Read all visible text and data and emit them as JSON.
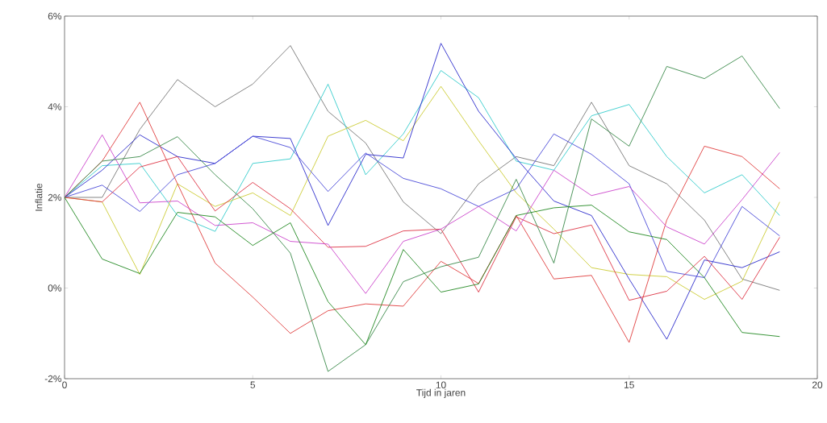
{
  "chart_data": {
    "type": "line",
    "xlabel": "Tijd in jaren",
    "ylabel": "Inflatie",
    "x": [
      0,
      1,
      2,
      3,
      4,
      5,
      6,
      7,
      8,
      9,
      10,
      11,
      12,
      13,
      14,
      15,
      16,
      17,
      18,
      19
    ],
    "xlim": [
      0,
      20
    ],
    "ylim": [
      -2,
      6
    ],
    "xticks": [
      0,
      5,
      10,
      15,
      20
    ],
    "yticks": [
      {
        "value": -2,
        "label": "-2%"
      },
      {
        "value": 0,
        "label": "0%"
      },
      {
        "value": 2,
        "label": "2%"
      },
      {
        "value": 4,
        "label": "4%"
      },
      {
        "value": 6,
        "label": "6%"
      }
    ],
    "series": [
      {
        "color": "#777777",
        "values": [
          2,
          2.0,
          3.5,
          4.6,
          4.0,
          4.5,
          5.35,
          3.9,
          3.2,
          1.9,
          1.2,
          2.3,
          2.9,
          2.7,
          4.1,
          2.7,
          2.3,
          1.5,
          0.2,
          -0.05
        ]
      },
      {
        "color": "#33cccc",
        "values": [
          2,
          2.7,
          2.75,
          1.6,
          1.25,
          2.75,
          2.85,
          4.5,
          2.5,
          3.4,
          4.8,
          4.2,
          2.8,
          2.6,
          3.8,
          4.05,
          2.9,
          2.1,
          2.5,
          1.6
        ]
      },
      {
        "color": "#cccc33",
        "values": [
          2,
          1.9,
          0.3,
          2.3,
          1.8,
          2.1,
          1.6,
          3.35,
          3.7,
          3.25,
          4.45,
          3.25,
          2.1,
          1.3,
          0.45,
          0.3,
          0.25,
          -0.25,
          0.15,
          1.9
        ]
      },
      {
        "color": "#2a2acc",
        "values": [
          2,
          2.6,
          3.38,
          2.9,
          2.75,
          3.35,
          3.3,
          1.38,
          2.95,
          2.87,
          5.4,
          3.9,
          2.86,
          1.92,
          1.6,
          0.2,
          -1.13,
          0.62,
          0.45,
          0.8
        ]
      },
      {
        "color": "#4a4ad8",
        "values": [
          2,
          2.27,
          1.69,
          2.5,
          2.75,
          3.35,
          3.1,
          2.13,
          2.98,
          2.42,
          2.19,
          1.8,
          2.19,
          3.4,
          2.95,
          2.3,
          0.37,
          0.23,
          1.8,
          1.15
        ]
      },
      {
        "color": "#e03c3c",
        "values": [
          2,
          2.8,
          4.1,
          2.3,
          0.55,
          -0.2,
          -1.0,
          -0.5,
          -0.35,
          -0.4,
          0.59,
          0.1,
          1.6,
          0.2,
          0.28,
          -1.2,
          1.5,
          3.13,
          2.9,
          2.19
        ]
      },
      {
        "color": "#dd3344",
        "values": [
          2,
          1.9,
          2.67,
          2.9,
          1.7,
          2.33,
          1.75,
          0.9,
          0.92,
          1.26,
          1.3,
          -0.09,
          1.57,
          1.2,
          1.39,
          -0.27,
          -0.07,
          0.7,
          -0.25,
          1.12
        ]
      },
      {
        "color": "#cc44cc",
        "values": [
          2,
          3.38,
          1.88,
          1.92,
          1.38,
          1.44,
          1.03,
          0.97,
          -0.12,
          1.03,
          1.3,
          1.8,
          1.26,
          2.6,
          2.04,
          2.24,
          1.35,
          0.97,
          1.95,
          2.99
        ]
      },
      {
        "color": "#3a8a4a",
        "values": [
          2,
          2.8,
          2.9,
          3.34,
          2.5,
          1.75,
          0.77,
          -1.84,
          -1.25,
          0.14,
          0.47,
          0.68,
          2.4,
          0.55,
          3.73,
          3.13,
          4.89,
          4.62,
          5.12,
          3.96
        ]
      },
      {
        "color": "#228822",
        "values": [
          2,
          0.64,
          0.32,
          1.67,
          1.57,
          0.94,
          1.44,
          -0.3,
          -1.25,
          0.85,
          -0.09,
          0.09,
          1.6,
          1.77,
          1.83,
          1.24,
          1.07,
          0.23,
          -0.98,
          -1.07
        ]
      }
    ]
  }
}
